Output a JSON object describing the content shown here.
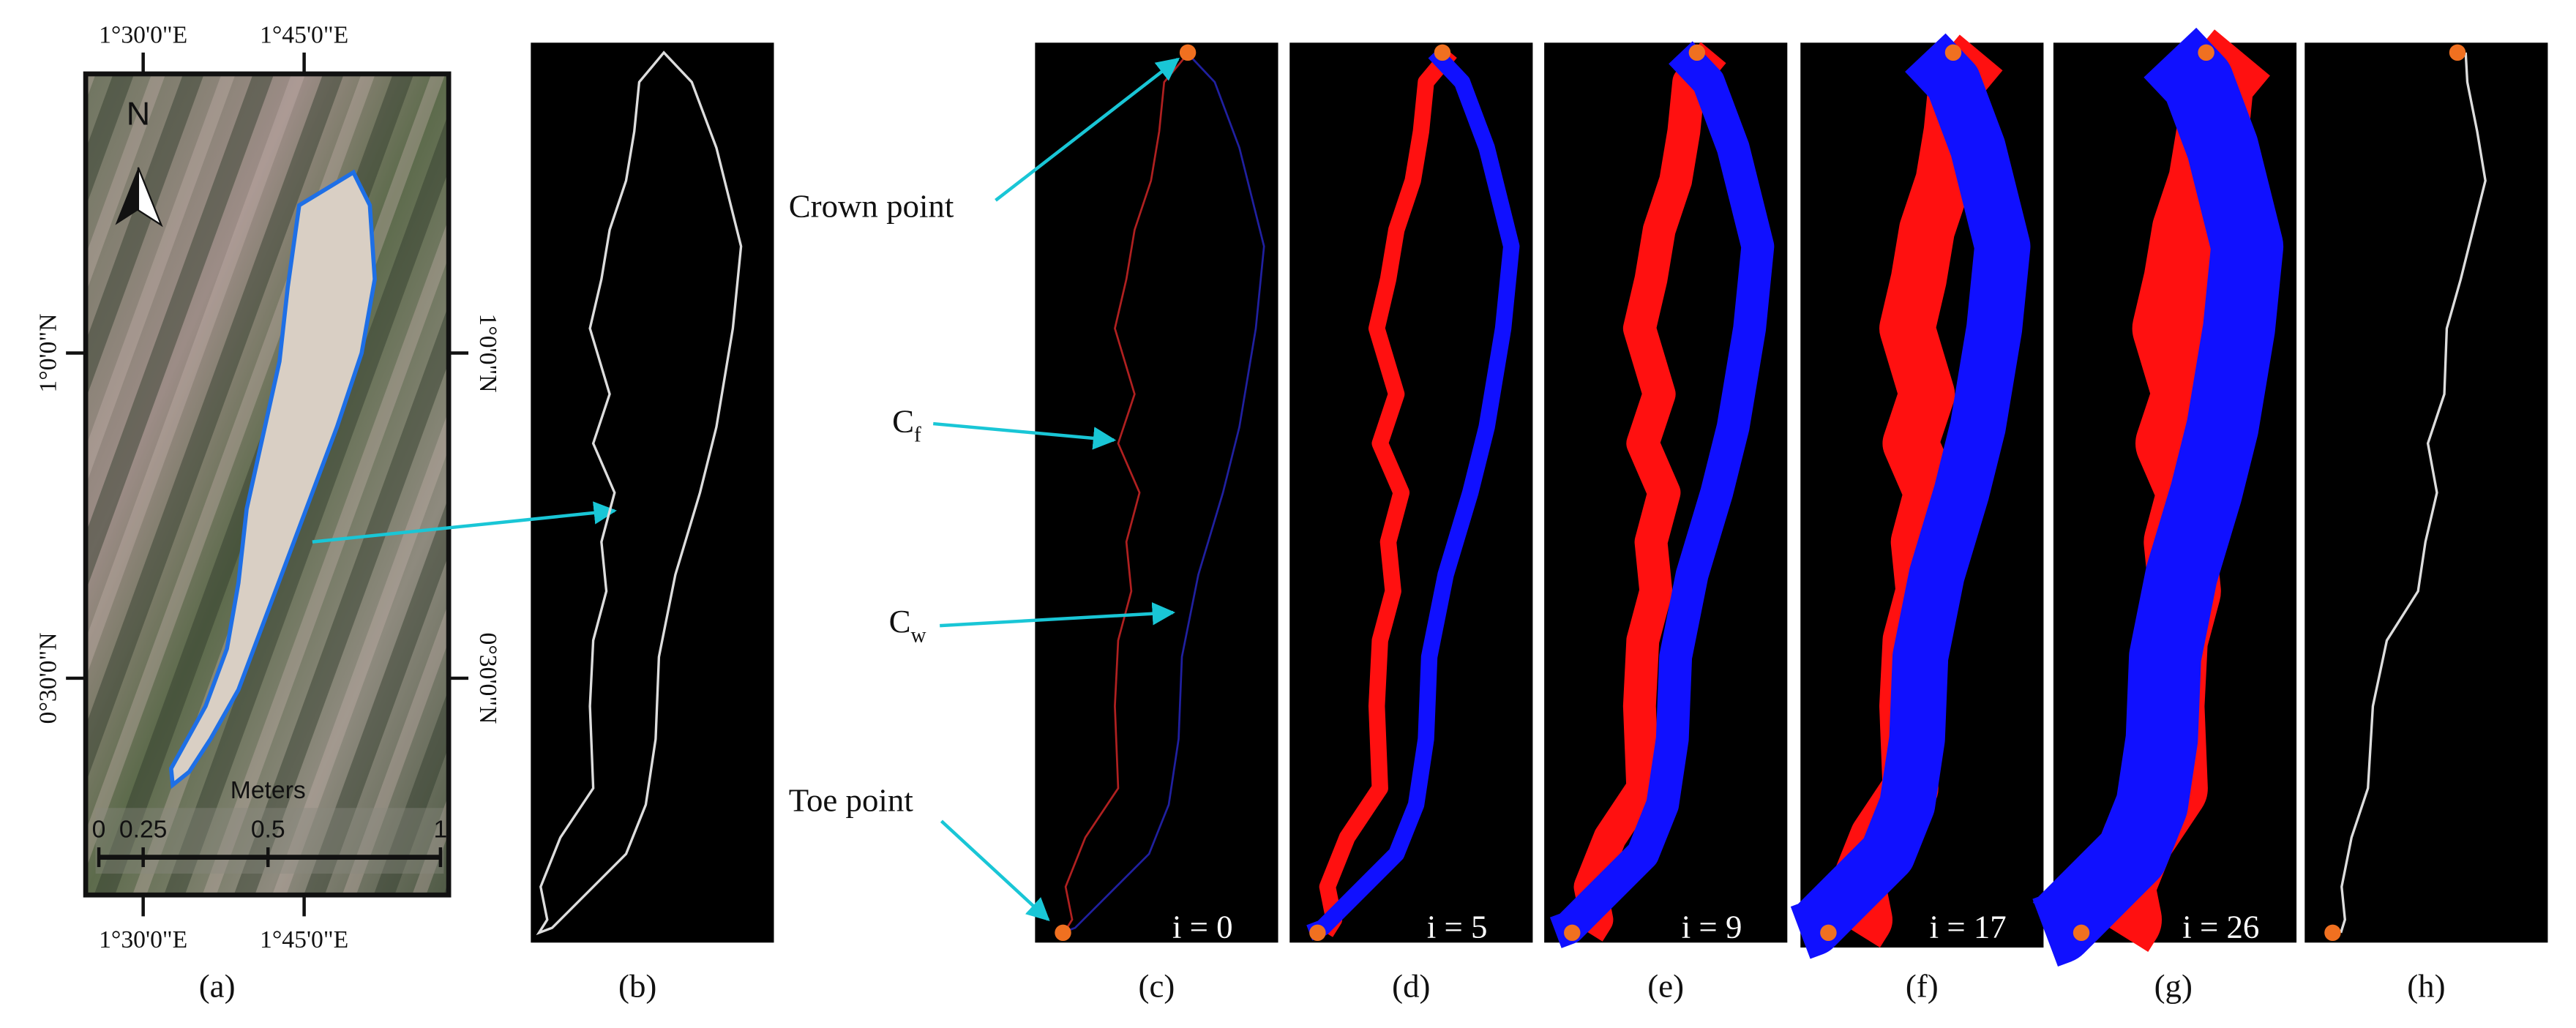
{
  "panel_a": {
    "top_ticks": [
      "1°30'0\"E",
      "1°45'0\"E"
    ],
    "bottom_ticks": [
      "1°30'0\"E",
      "1°45'0\"E"
    ],
    "left_ticks": [
      "1°0'0\"N",
      "0°30'0\"N"
    ],
    "right_ticks": [
      "1°0'0\"N",
      "0°30'0\"N"
    ],
    "north": "N",
    "scale_title": "Meters",
    "scale_labels": [
      "0",
      "0.25",
      "0.5",
      "1"
    ]
  },
  "annotations": {
    "crown": "Crown point",
    "cf_main": "C",
    "cf_sub": "f",
    "cw_main": "C",
    "cw_sub": "w",
    "toe": "Toe point"
  },
  "iterations": [
    "i = 0",
    "i = 5",
    "i = 9",
    "i = 17",
    "i = 26"
  ],
  "panel_labels": [
    "(a)",
    "(b)",
    "(c)",
    "(d)",
    "(e)",
    "(f)",
    "(g)",
    "(h)"
  ]
}
